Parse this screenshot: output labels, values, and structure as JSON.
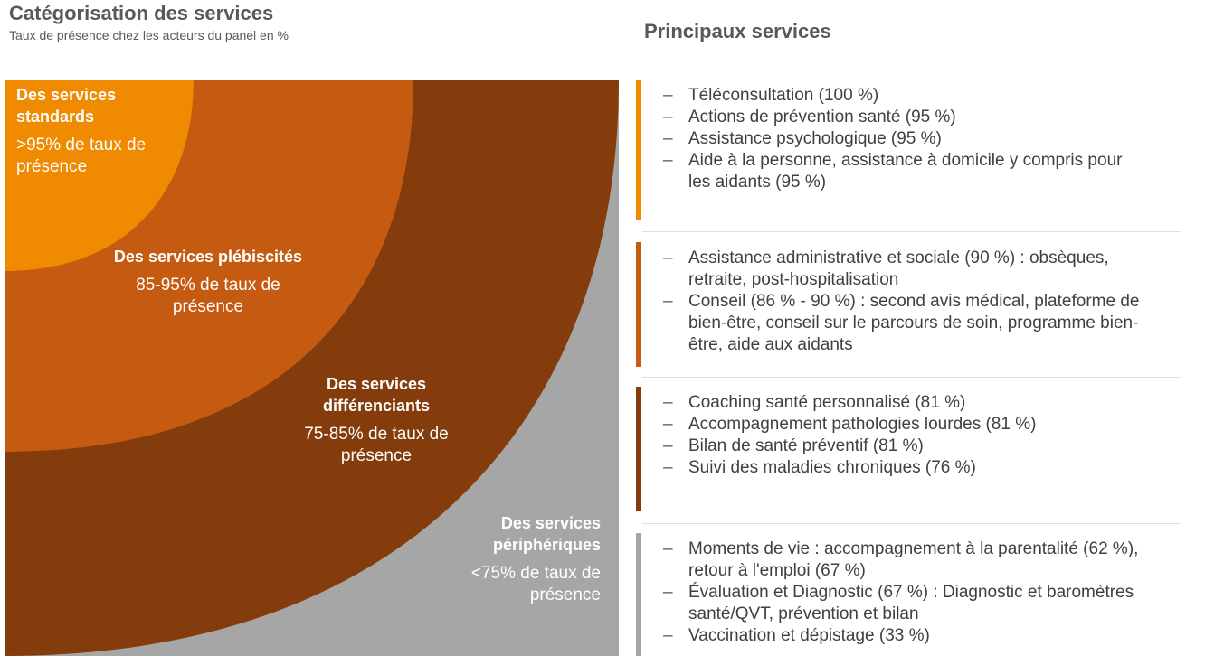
{
  "header": {
    "left_title": "Catégorisation des services",
    "left_subtitle": "Taux de présence chez les acteurs du panel en %",
    "right_title": "Principaux services"
  },
  "colors": {
    "standards": "#F08A00",
    "plebiscites": "#C55A11",
    "differenciants": "#843C0C",
    "peripheriques": "#A6A6A6"
  },
  "zones": [
    {
      "name": "Des services standards",
      "rate": ">95% de taux de présence"
    },
    {
      "name": "Des services plébiscités",
      "rate": "85-95% de taux de présence"
    },
    {
      "name": "Des services différenciants",
      "rate": "75-85% de taux de présence"
    },
    {
      "name": "Des services périphériques",
      "rate": "<75% de taux de présence"
    }
  ],
  "groups": [
    {
      "items": [
        "Téléconsultation (100 %)",
        "Actions de prévention santé (95 %)",
        "Assistance psychologique (95 %)",
        "Aide à la personne, assistance à domicile y compris pour les aidants (95 %)"
      ]
    },
    {
      "items": [
        "Assistance administrative et sociale (90 %) : obsèques, retraite, post-hospitalisation",
        "Conseil (86 % - 90 %) : second avis médical, plateforme de bien-être, conseil sur le parcours de soin, programme bien-être, aide aux aidants"
      ]
    },
    {
      "items": [
        "Coaching santé personnalisé (81 %)",
        "Accompagnement pathologies lourdes (81 %)",
        "Bilan de santé préventif (81 %)",
        "Suivi des maladies chroniques (76 %)"
      ]
    },
    {
      "items": [
        "Moments de vie : accompagnement à la parentalité (62 %), retour à l'emploi (67 %)",
        "Évaluation et Diagnostic (67 %) : Diagnostic et baromètres santé/QVT, prévention et bilan",
        "Vaccination et dépistage (33 %)"
      ]
    }
  ]
}
